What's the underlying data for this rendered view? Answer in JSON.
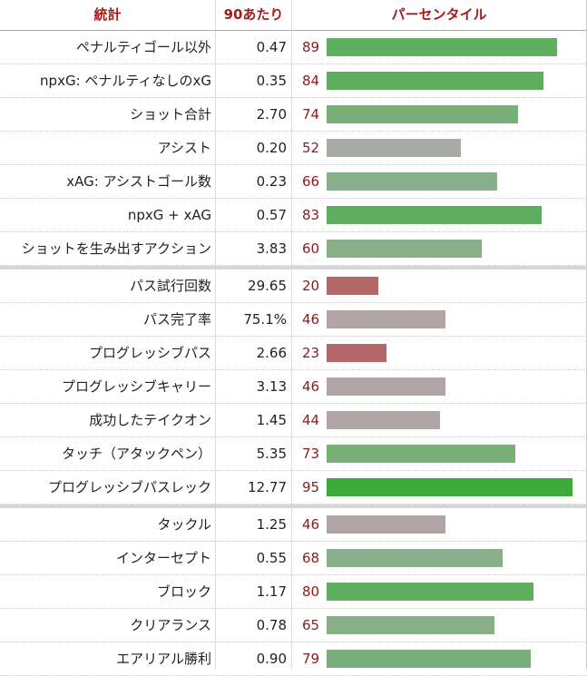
{
  "headers": {
    "stat": "統計",
    "per90": "90あたり",
    "percentile": "パーセンタイル"
  },
  "colors": {
    "header_text": "#a51a1a",
    "percentile_text": "#8b1a1a",
    "bar_95": "#3cab3c",
    "bar_80_89": "#5fae5f",
    "bar_70_79": "#7aaf7a",
    "bar_60_69": "#88b088",
    "bar_50_59": "#a8aaa6",
    "bar_40_49": "#b0a4a4",
    "bar_below_25": "#b36767"
  },
  "chart_data": {
    "type": "bar",
    "orientation": "horizontal",
    "xlim": [
      0,
      100
    ],
    "groups": [
      {
        "rows": [
          {
            "stat": "ペナルティゴール以外",
            "per90": "0.47",
            "percentile": 89
          },
          {
            "stat": "npxG: ペナルティなしのxG",
            "per90": "0.35",
            "percentile": 84
          },
          {
            "stat": "ショット合計",
            "per90": "2.70",
            "percentile": 74
          },
          {
            "stat": "アシスト",
            "per90": "0.20",
            "percentile": 52
          },
          {
            "stat": "xAG: アシストゴール数",
            "per90": "0.23",
            "percentile": 66
          },
          {
            "stat": "npxG + xAG",
            "per90": "0.57",
            "percentile": 83
          },
          {
            "stat": "ショットを生み出すアクション",
            "per90": "3.83",
            "percentile": 60
          }
        ]
      },
      {
        "rows": [
          {
            "stat": "パス試行回数",
            "per90": "29.65",
            "percentile": 20
          },
          {
            "stat": "パス完了率",
            "per90": "75.1%",
            "percentile": 46
          },
          {
            "stat": "プログレッシブパス",
            "per90": "2.66",
            "percentile": 23
          },
          {
            "stat": "プログレッシブキャリー",
            "per90": "3.13",
            "percentile": 46
          },
          {
            "stat": "成功したテイクオン",
            "per90": "1.45",
            "percentile": 44
          },
          {
            "stat": "タッチ（アタックペン）",
            "per90": "5.35",
            "percentile": 73
          },
          {
            "stat": "プログレッシブパスレック",
            "per90": "12.77",
            "percentile": 95
          }
        ]
      },
      {
        "rows": [
          {
            "stat": "タックル",
            "per90": "1.25",
            "percentile": 46
          },
          {
            "stat": "インターセプト",
            "per90": "0.55",
            "percentile": 68
          },
          {
            "stat": "ブロック",
            "per90": "1.17",
            "percentile": 80
          },
          {
            "stat": "クリアランス",
            "per90": "0.78",
            "percentile": 65
          },
          {
            "stat": "エアリアル勝利",
            "per90": "0.90",
            "percentile": 79
          }
        ]
      }
    ]
  }
}
